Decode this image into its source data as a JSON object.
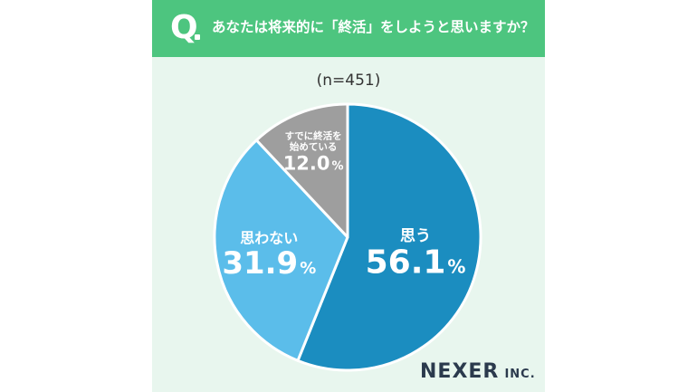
{
  "header": {
    "q_mark": "Q",
    "question": "あなたは将来的に「終活」をしようと思いますか？"
  },
  "sample_size": "(n=451)",
  "chart_data": {
    "type": "pie",
    "title": "あなたは将来的に「終活」をしようと思いますか？",
    "subtitle": "(n=451)",
    "slices": [
      {
        "label": "思う",
        "value": 56.1,
        "value_label": "56.1",
        "unit": "%",
        "color": "#1b8dc0"
      },
      {
        "label": "思わない",
        "value": 31.9,
        "value_label": "31.9",
        "unit": "%",
        "color": "#5bbdea"
      },
      {
        "label_lines": [
          "すでに終活を",
          "始めている"
        ],
        "value": 12.0,
        "value_label": "12.0",
        "unit": "%",
        "color": "#9e9e9e"
      }
    ]
  },
  "logo": {
    "main": "NEXER",
    "suffix": "INC."
  }
}
